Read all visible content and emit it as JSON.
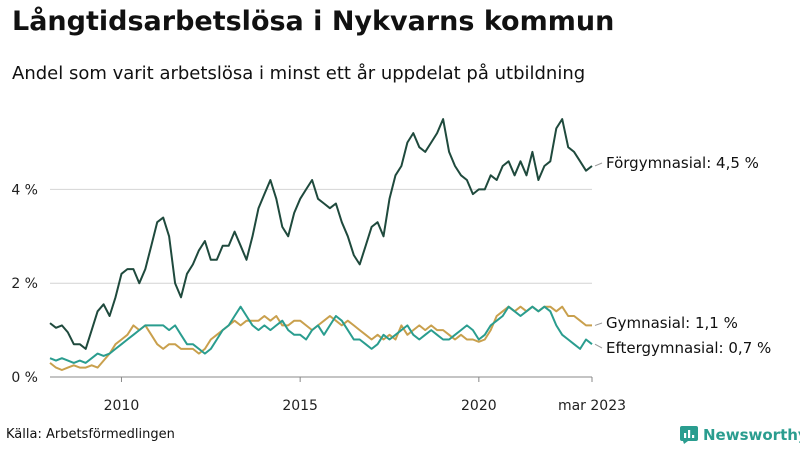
{
  "title": "Långtidsarbetslösa i Nykvarns kommun",
  "subtitle": "Andel som varit arbetslösa i minst ett år uppdelat på utbildning",
  "source": "Källa: Arbetsförmedlingen",
  "brand": "Newsworthy",
  "colors": {
    "forgymnasial": "#1f4a3d",
    "gymnasial": "#c9a04d",
    "eftergymnasial": "#2a9d8f",
    "grid": "#d4d4d4",
    "brand": "#2a9d8f"
  },
  "chart_data": {
    "type": "line",
    "title": "Långtidsarbetslösa i Nykvarns kommun",
    "subtitle": "Andel som varit arbetslösa i minst ett år uppdelat på utbildning",
    "xlabel": "",
    "ylabel": "",
    "x_range": [
      "2008-01",
      "2023-03"
    ],
    "ylim": [
      0,
      5.8
    ],
    "y_ticks": [
      0,
      2,
      4
    ],
    "y_tick_labels": [
      "0 %",
      "2 %",
      "4 %"
    ],
    "x_ticks": [
      "2010-01",
      "2015-01",
      "2020-01",
      "2023-03"
    ],
    "x_tick_labels": [
      "2010",
      "2015",
      "2020",
      "mar 2023"
    ],
    "grid": true,
    "series": [
      {
        "name": "Förgymnasial",
        "end_label": "Förgymnasial: 4,5 %",
        "color": "#1f4a3d",
        "points": [
          [
            "2008-01",
            1.15
          ],
          [
            "2008-03",
            1.05
          ],
          [
            "2008-05",
            1.1
          ],
          [
            "2008-07",
            0.95
          ],
          [
            "2008-09",
            0.7
          ],
          [
            "2008-11",
            0.7
          ],
          [
            "2009-01",
            0.6
          ],
          [
            "2009-03",
            1.0
          ],
          [
            "2009-05",
            1.4
          ],
          [
            "2009-07",
            1.55
          ],
          [
            "2009-09",
            1.3
          ],
          [
            "2009-11",
            1.7
          ],
          [
            "2010-01",
            2.2
          ],
          [
            "2010-03",
            2.3
          ],
          [
            "2010-05",
            2.3
          ],
          [
            "2010-07",
            2.0
          ],
          [
            "2010-09",
            2.3
          ],
          [
            "2010-11",
            2.8
          ],
          [
            "2011-01",
            3.3
          ],
          [
            "2011-03",
            3.4
          ],
          [
            "2011-05",
            3.0
          ],
          [
            "2011-07",
            2.0
          ],
          [
            "2011-09",
            1.7
          ],
          [
            "2011-11",
            2.2
          ],
          [
            "2012-01",
            2.4
          ],
          [
            "2012-03",
            2.7
          ],
          [
            "2012-05",
            2.9
          ],
          [
            "2012-07",
            2.5
          ],
          [
            "2012-09",
            2.5
          ],
          [
            "2012-11",
            2.8
          ],
          [
            "2013-01",
            2.8
          ],
          [
            "2013-03",
            3.1
          ],
          [
            "2013-05",
            2.8
          ],
          [
            "2013-07",
            2.5
          ],
          [
            "2013-09",
            3.0
          ],
          [
            "2013-11",
            3.6
          ],
          [
            "2014-01",
            3.9
          ],
          [
            "2014-03",
            4.2
          ],
          [
            "2014-05",
            3.8
          ],
          [
            "2014-07",
            3.2
          ],
          [
            "2014-09",
            3.0
          ],
          [
            "2014-11",
            3.5
          ],
          [
            "2015-01",
            3.8
          ],
          [
            "2015-03",
            4.0
          ],
          [
            "2015-05",
            4.2
          ],
          [
            "2015-07",
            3.8
          ],
          [
            "2015-09",
            3.7
          ],
          [
            "2015-11",
            3.6
          ],
          [
            "2016-01",
            3.7
          ],
          [
            "2016-03",
            3.3
          ],
          [
            "2016-05",
            3.0
          ],
          [
            "2016-07",
            2.6
          ],
          [
            "2016-09",
            2.4
          ],
          [
            "2016-11",
            2.8
          ],
          [
            "2017-01",
            3.2
          ],
          [
            "2017-03",
            3.3
          ],
          [
            "2017-05",
            3.0
          ],
          [
            "2017-07",
            3.8
          ],
          [
            "2017-09",
            4.3
          ],
          [
            "2017-11",
            4.5
          ],
          [
            "2018-01",
            5.0
          ],
          [
            "2018-03",
            5.2
          ],
          [
            "2018-05",
            4.9
          ],
          [
            "2018-07",
            4.8
          ],
          [
            "2018-09",
            5.0
          ],
          [
            "2018-11",
            5.2
          ],
          [
            "2019-01",
            5.5
          ],
          [
            "2019-03",
            4.8
          ],
          [
            "2019-05",
            4.5
          ],
          [
            "2019-07",
            4.3
          ],
          [
            "2019-09",
            4.2
          ],
          [
            "2019-11",
            3.9
          ],
          [
            "2020-01",
            4.0
          ],
          [
            "2020-03",
            4.0
          ],
          [
            "2020-05",
            4.3
          ],
          [
            "2020-07",
            4.2
          ],
          [
            "2020-09",
            4.5
          ],
          [
            "2020-11",
            4.6
          ],
          [
            "2021-01",
            4.3
          ],
          [
            "2021-03",
            4.6
          ],
          [
            "2021-05",
            4.3
          ],
          [
            "2021-07",
            4.8
          ],
          [
            "2021-09",
            4.2
          ],
          [
            "2021-11",
            4.5
          ],
          [
            "2022-01",
            4.6
          ],
          [
            "2022-03",
            5.3
          ],
          [
            "2022-05",
            5.5
          ],
          [
            "2022-07",
            4.9
          ],
          [
            "2022-09",
            4.8
          ],
          [
            "2022-11",
            4.6
          ],
          [
            "2023-01",
            4.4
          ],
          [
            "2023-03",
            4.5
          ]
        ]
      },
      {
        "name": "Gymnasial",
        "end_label": "Gymnasial: 1,1 %",
        "color": "#c9a04d",
        "points": [
          [
            "2008-01",
            0.3
          ],
          [
            "2008-03",
            0.2
          ],
          [
            "2008-05",
            0.15
          ],
          [
            "2008-07",
            0.2
          ],
          [
            "2008-09",
            0.25
          ],
          [
            "2008-11",
            0.2
          ],
          [
            "2009-01",
            0.2
          ],
          [
            "2009-03",
            0.25
          ],
          [
            "2009-05",
            0.2
          ],
          [
            "2009-07",
            0.35
          ],
          [
            "2009-09",
            0.5
          ],
          [
            "2009-11",
            0.7
          ],
          [
            "2010-01",
            0.8
          ],
          [
            "2010-03",
            0.9
          ],
          [
            "2010-05",
            1.1
          ],
          [
            "2010-07",
            1.0
          ],
          [
            "2010-09",
            1.1
          ],
          [
            "2010-11",
            0.9
          ],
          [
            "2011-01",
            0.7
          ],
          [
            "2011-03",
            0.6
          ],
          [
            "2011-05",
            0.7
          ],
          [
            "2011-07",
            0.7
          ],
          [
            "2011-09",
            0.6
          ],
          [
            "2011-11",
            0.6
          ],
          [
            "2012-01",
            0.6
          ],
          [
            "2012-03",
            0.5
          ],
          [
            "2012-05",
            0.6
          ],
          [
            "2012-07",
            0.8
          ],
          [
            "2012-09",
            0.9
          ],
          [
            "2012-11",
            1.0
          ],
          [
            "2013-01",
            1.1
          ],
          [
            "2013-03",
            1.2
          ],
          [
            "2013-05",
            1.1
          ],
          [
            "2013-07",
            1.2
          ],
          [
            "2013-09",
            1.2
          ],
          [
            "2013-11",
            1.2
          ],
          [
            "2014-01",
            1.3
          ],
          [
            "2014-03",
            1.2
          ],
          [
            "2014-05",
            1.3
          ],
          [
            "2014-07",
            1.1
          ],
          [
            "2014-09",
            1.1
          ],
          [
            "2014-11",
            1.2
          ],
          [
            "2015-01",
            1.2
          ],
          [
            "2015-03",
            1.1
          ],
          [
            "2015-05",
            1.0
          ],
          [
            "2015-07",
            1.1
          ],
          [
            "2015-09",
            1.2
          ],
          [
            "2015-11",
            1.3
          ],
          [
            "2016-01",
            1.2
          ],
          [
            "2016-03",
            1.1
          ],
          [
            "2016-05",
            1.2
          ],
          [
            "2016-07",
            1.1
          ],
          [
            "2016-09",
            1.0
          ],
          [
            "2016-11",
            0.9
          ],
          [
            "2017-01",
            0.8
          ],
          [
            "2017-03",
            0.9
          ],
          [
            "2017-05",
            0.8
          ],
          [
            "2017-07",
            0.9
          ],
          [
            "2017-09",
            0.8
          ],
          [
            "2017-11",
            1.1
          ],
          [
            "2018-01",
            0.9
          ],
          [
            "2018-03",
            1.0
          ],
          [
            "2018-05",
            1.1
          ],
          [
            "2018-07",
            1.0
          ],
          [
            "2018-09",
            1.1
          ],
          [
            "2018-11",
            1.0
          ],
          [
            "2019-01",
            1.0
          ],
          [
            "2019-03",
            0.9
          ],
          [
            "2019-05",
            0.8
          ],
          [
            "2019-07",
            0.9
          ],
          [
            "2019-09",
            0.8
          ],
          [
            "2019-11",
            0.8
          ],
          [
            "2020-01",
            0.75
          ],
          [
            "2020-03",
            0.8
          ],
          [
            "2020-05",
            1.0
          ],
          [
            "2020-07",
            1.3
          ],
          [
            "2020-09",
            1.4
          ],
          [
            "2020-11",
            1.5
          ],
          [
            "2021-01",
            1.4
          ],
          [
            "2021-03",
            1.5
          ],
          [
            "2021-05",
            1.4
          ],
          [
            "2021-07",
            1.5
          ],
          [
            "2021-09",
            1.4
          ],
          [
            "2021-11",
            1.5
          ],
          [
            "2022-01",
            1.5
          ],
          [
            "2022-03",
            1.4
          ],
          [
            "2022-05",
            1.5
          ],
          [
            "2022-07",
            1.3
          ],
          [
            "2022-09",
            1.3
          ],
          [
            "2022-11",
            1.2
          ],
          [
            "2023-01",
            1.1
          ],
          [
            "2023-03",
            1.1
          ]
        ]
      },
      {
        "name": "Eftergymnasial",
        "end_label": "Eftergymnasial: 0,7 %",
        "color": "#2a9d8f",
        "points": [
          [
            "2008-01",
            0.4
          ],
          [
            "2008-03",
            0.35
          ],
          [
            "2008-05",
            0.4
          ],
          [
            "2008-07",
            0.35
          ],
          [
            "2008-09",
            0.3
          ],
          [
            "2008-11",
            0.35
          ],
          [
            "2009-01",
            0.3
          ],
          [
            "2009-03",
            0.4
          ],
          [
            "2009-05",
            0.5
          ],
          [
            "2009-07",
            0.45
          ],
          [
            "2009-09",
            0.5
          ],
          [
            "2009-11",
            0.6
          ],
          [
            "2010-01",
            0.7
          ],
          [
            "2010-03",
            0.8
          ],
          [
            "2010-05",
            0.9
          ],
          [
            "2010-07",
            1.0
          ],
          [
            "2010-09",
            1.1
          ],
          [
            "2010-11",
            1.1
          ],
          [
            "2011-01",
            1.1
          ],
          [
            "2011-03",
            1.1
          ],
          [
            "2011-05",
            1.0
          ],
          [
            "2011-07",
            1.1
          ],
          [
            "2011-09",
            0.9
          ],
          [
            "2011-11",
            0.7
          ],
          [
            "2012-01",
            0.7
          ],
          [
            "2012-03",
            0.6
          ],
          [
            "2012-05",
            0.5
          ],
          [
            "2012-07",
            0.6
          ],
          [
            "2012-09",
            0.8
          ],
          [
            "2012-11",
            1.0
          ],
          [
            "2013-01",
            1.1
          ],
          [
            "2013-03",
            1.3
          ],
          [
            "2013-05",
            1.5
          ],
          [
            "2013-07",
            1.3
          ],
          [
            "2013-09",
            1.1
          ],
          [
            "2013-11",
            1.0
          ],
          [
            "2014-01",
            1.1
          ],
          [
            "2014-03",
            1.0
          ],
          [
            "2014-05",
            1.1
          ],
          [
            "2014-07",
            1.2
          ],
          [
            "2014-09",
            1.0
          ],
          [
            "2014-11",
            0.9
          ],
          [
            "2015-01",
            0.9
          ],
          [
            "2015-03",
            0.8
          ],
          [
            "2015-05",
            1.0
          ],
          [
            "2015-07",
            1.1
          ],
          [
            "2015-09",
            0.9
          ],
          [
            "2015-11",
            1.1
          ],
          [
            "2016-01",
            1.3
          ],
          [
            "2016-03",
            1.2
          ],
          [
            "2016-05",
            1.0
          ],
          [
            "2016-07",
            0.8
          ],
          [
            "2016-09",
            0.8
          ],
          [
            "2016-11",
            0.7
          ],
          [
            "2017-01",
            0.6
          ],
          [
            "2017-03",
            0.7
          ],
          [
            "2017-05",
            0.9
          ],
          [
            "2017-07",
            0.8
          ],
          [
            "2017-09",
            0.9
          ],
          [
            "2017-11",
            1.0
          ],
          [
            "2018-01",
            1.1
          ],
          [
            "2018-03",
            0.9
          ],
          [
            "2018-05",
            0.8
          ],
          [
            "2018-07",
            0.9
          ],
          [
            "2018-09",
            1.0
          ],
          [
            "2018-11",
            0.9
          ],
          [
            "2019-01",
            0.8
          ],
          [
            "2019-03",
            0.8
          ],
          [
            "2019-05",
            0.9
          ],
          [
            "2019-07",
            1.0
          ],
          [
            "2019-09",
            1.1
          ],
          [
            "2019-11",
            1.0
          ],
          [
            "2020-01",
            0.8
          ],
          [
            "2020-03",
            0.9
          ],
          [
            "2020-05",
            1.1
          ],
          [
            "2020-07",
            1.2
          ],
          [
            "2020-09",
            1.3
          ],
          [
            "2020-11",
            1.5
          ],
          [
            "2021-01",
            1.4
          ],
          [
            "2021-03",
            1.3
          ],
          [
            "2021-05",
            1.4
          ],
          [
            "2021-07",
            1.5
          ],
          [
            "2021-09",
            1.4
          ],
          [
            "2021-11",
            1.5
          ],
          [
            "2022-01",
            1.4
          ],
          [
            "2022-03",
            1.1
          ],
          [
            "2022-05",
            0.9
          ],
          [
            "2022-07",
            0.8
          ],
          [
            "2022-09",
            0.7
          ],
          [
            "2022-11",
            0.6
          ],
          [
            "2023-01",
            0.8
          ],
          [
            "2023-03",
            0.7
          ]
        ]
      }
    ]
  }
}
